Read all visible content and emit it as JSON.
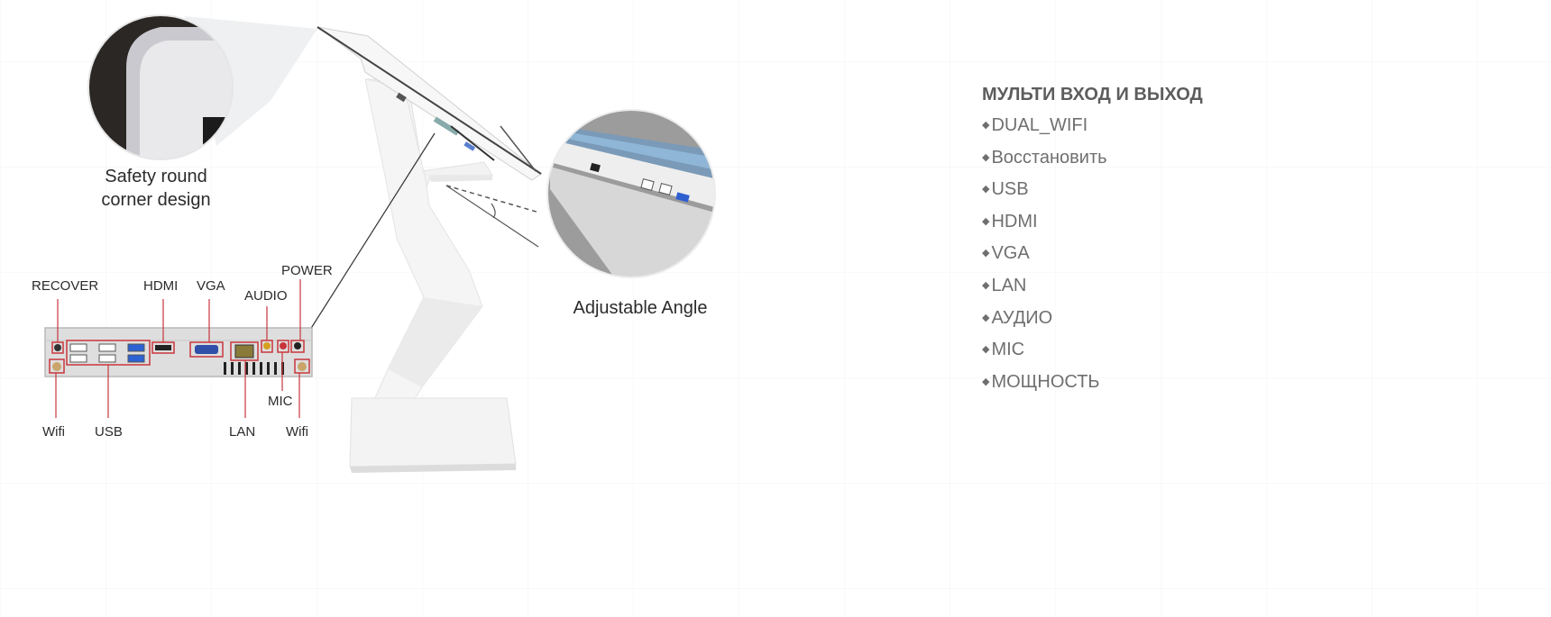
{
  "captions": {
    "corner_line1": "Safety round",
    "corner_line2": "corner design",
    "angle": "Adjustable Angle"
  },
  "ports": {
    "recover": "RECOVER",
    "hdmi": "HDMI",
    "vga": "VGA",
    "audio": "AUDIO",
    "power": "POWER",
    "mic": "MIC",
    "wifi_left": "Wifi",
    "usb": "USB",
    "lan": "LAN",
    "wifi_right": "Wifi"
  },
  "specs": {
    "heading": "МУЛЬТИ ВХОД И ВЫХОД",
    "bullet": "◆",
    "items": [
      "DUAL_WIFI",
      "Восстановить",
      "USB",
      "HDMI",
      "VGA",
      "LAN",
      "АУДИО",
      "MIC",
      "МОЩНОСТЬ"
    ]
  },
  "colors": {
    "callout": "#c8363c",
    "heading": "#5d5d5d",
    "list_text": "#6f6f6f"
  }
}
